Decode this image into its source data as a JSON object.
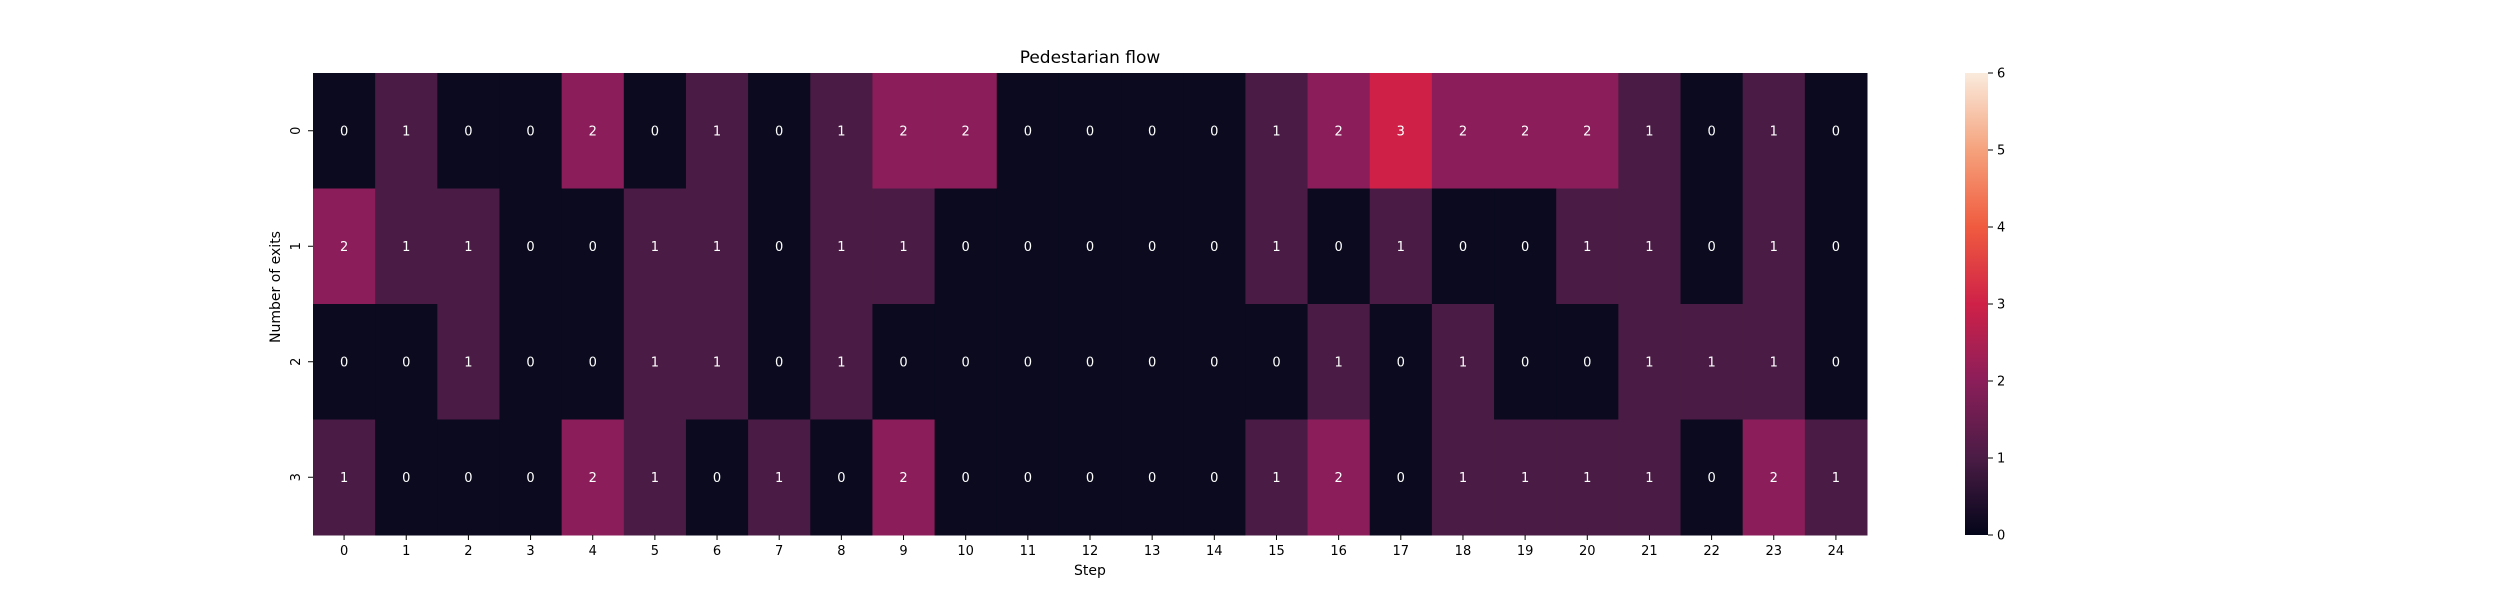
{
  "chart_data": {
    "type": "heatmap",
    "title": "Pedestarian flow",
    "xlabel": "Step",
    "ylabel": "Number of exits",
    "x_categories": [
      "0",
      "1",
      "2",
      "3",
      "4",
      "5",
      "6",
      "7",
      "8",
      "9",
      "10",
      "11",
      "12",
      "13",
      "14",
      "15",
      "16",
      "17",
      "18",
      "19",
      "20",
      "21",
      "22",
      "23",
      "24"
    ],
    "y_categories": [
      "0",
      "1",
      "2",
      "3"
    ],
    "values": [
      [
        0,
        1,
        0,
        0,
        2,
        0,
        1,
        0,
        1,
        2,
        2,
        0,
        0,
        0,
        0,
        1,
        2,
        3,
        2,
        2,
        2,
        1,
        0,
        1,
        0
      ],
      [
        2,
        1,
        1,
        0,
        0,
        1,
        1,
        0,
        1,
        1,
        0,
        0,
        0,
        0,
        0,
        1,
        0,
        1,
        0,
        0,
        1,
        1,
        0,
        1,
        0
      ],
      [
        0,
        0,
        1,
        0,
        0,
        1,
        1,
        0,
        1,
        0,
        0,
        0,
        0,
        0,
        0,
        0,
        1,
        0,
        1,
        0,
        0,
        1,
        1,
        1,
        0
      ],
      [
        1,
        0,
        0,
        0,
        2,
        1,
        0,
        1,
        0,
        2,
        0,
        0,
        0,
        0,
        0,
        1,
        2,
        0,
        1,
        1,
        1,
        1,
        0,
        2,
        1
      ]
    ],
    "annotated": true,
    "colorbar": {
      "min": 0,
      "max": 6,
      "ticks": [
        "0",
        "1",
        "2",
        "3",
        "4",
        "5",
        "6"
      ],
      "colormap": "rocket"
    },
    "colors": {
      "0": "#0b0a1e",
      "1": "#4a1c45",
      "2": "#8b1e5a",
      "3": "#cf2148"
    }
  }
}
